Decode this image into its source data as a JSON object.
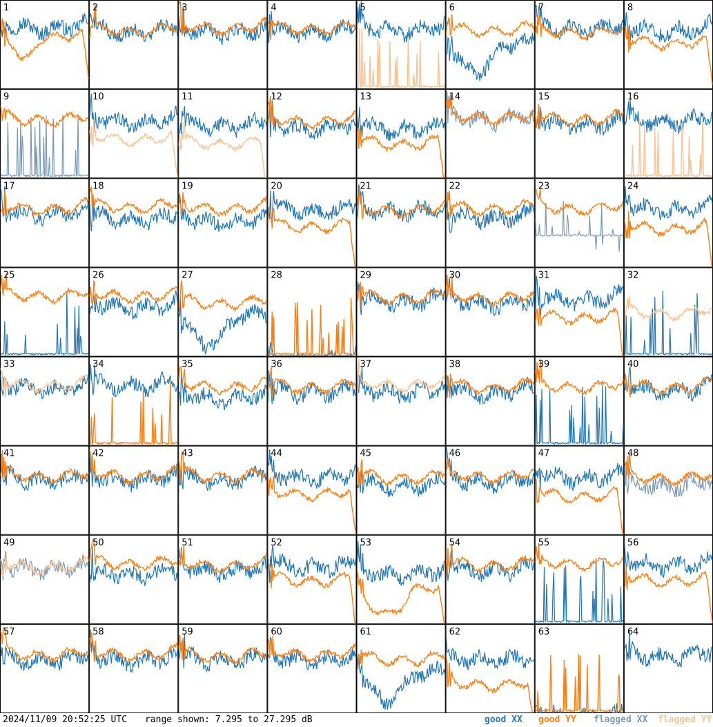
{
  "footer": {
    "timestamp": "2024/11/09 20:52:25 UTC",
    "range_text": "range shown: 7.295 to 27.295 dB",
    "legend": [
      {
        "label": "good XX",
        "color": "#1f77b4"
      },
      {
        "label": "good YY",
        "color": "#ff7f0e"
      },
      {
        "label": "flagged XX",
        "color": "#7a99b3"
      },
      {
        "label": "flagged YY",
        "color": "#f9c493"
      }
    ]
  },
  "chart_data": {
    "type": "line",
    "layout": "8x8 small multiples",
    "ylim": [
      7.295,
      27.295
    ],
    "yunits": "dB",
    "colors": {
      "good_xx": "#1f77b4",
      "good_yy": "#ff7f0e",
      "flagged_xx": "#7a99b3",
      "flagged_yy": "#f9c493"
    },
    "panels": [
      {
        "id": "1",
        "xx": "good",
        "yy": "good",
        "xx_level": 0.75,
        "yy_level": 0.65,
        "yy_shape": "hump",
        "yy_edge": "drop"
      },
      {
        "id": "2",
        "xx": "good",
        "yy": "good",
        "xx_level": 0.7,
        "yy_level": 0.72
      },
      {
        "id": "3",
        "xx": "good",
        "yy": "good",
        "xx_level": 0.7,
        "yy_level": 0.75
      },
      {
        "id": "4",
        "xx": "good",
        "yy": "good",
        "xx_level": 0.7,
        "yy_level": 0.74
      },
      {
        "id": "5",
        "xx": "good",
        "yy": "flagged",
        "xx_level": 0.73,
        "yy_level": 0.02,
        "yy_shape": "spiky"
      },
      {
        "id": "6",
        "xx": "good",
        "yy": "good",
        "xx_level": 0.55,
        "yy_level": 0.72,
        "xx_shape": "dip"
      },
      {
        "id": "7",
        "xx": "good",
        "yy": "good",
        "xx_level": 0.74,
        "yy_level": 0.7
      },
      {
        "id": "8",
        "xx": "good",
        "yy": "good",
        "xx_level": 0.72,
        "yy_level": 0.58,
        "yy_edge": "drop"
      },
      {
        "id": "9",
        "xx": "flagged",
        "yy": "good",
        "xx_level": 0.02,
        "yy_level": 0.72,
        "xx_shape": "spiky"
      },
      {
        "id": "10",
        "xx": "good",
        "yy": "flagged",
        "xx_level": 0.7,
        "yy_level": 0.5,
        "yy_edge": "drop"
      },
      {
        "id": "11",
        "xx": "good",
        "yy": "flagged",
        "xx_level": 0.65,
        "yy_level": 0.45,
        "yy_edge": "drop"
      },
      {
        "id": "12",
        "xx": "good",
        "yy": "good",
        "xx_level": 0.62,
        "yy_level": 0.7
      },
      {
        "id": "13",
        "xx": "good",
        "yy": "good",
        "xx_level": 0.62,
        "yy_level": 0.45,
        "yy_edge": "drop"
      },
      {
        "id": "14",
        "xx": "flagged",
        "yy": "good",
        "xx_level": 0.72,
        "yy_level": 0.74
      },
      {
        "id": "15",
        "xx": "good",
        "yy": "good",
        "xx_level": 0.66,
        "yy_level": 0.72
      },
      {
        "id": "16",
        "xx": "good",
        "yy": "flagged",
        "xx_level": 0.7,
        "yy_level": 0.02,
        "yy_shape": "spiky"
      },
      {
        "id": "17",
        "xx": "good",
        "yy": "good",
        "xx_level": 0.66,
        "yy_level": 0.72
      },
      {
        "id": "18",
        "xx": "good",
        "yy": "good",
        "xx_level": 0.6,
        "yy_level": 0.74
      },
      {
        "id": "19",
        "xx": "good",
        "yy": "good",
        "xx_level": 0.58,
        "yy_level": 0.72
      },
      {
        "id": "20",
        "xx": "good",
        "yy": "good",
        "xx_level": 0.7,
        "yy_level": 0.52,
        "yy_edge": "drop"
      },
      {
        "id": "21",
        "xx": "good",
        "yy": "good",
        "xx_level": 0.7,
        "yy_level": 0.7
      },
      {
        "id": "22",
        "xx": "good",
        "yy": "good",
        "xx_level": 0.62,
        "yy_level": 0.72
      },
      {
        "id": "23",
        "xx": "flagged",
        "yy": "good",
        "xx_level": 0.35,
        "yy_level": 0.72,
        "xx_shape": "spiky"
      },
      {
        "id": "24",
        "xx": "good",
        "yy": "good",
        "xx_level": 0.72,
        "yy_level": 0.5,
        "yy_edge": "drop"
      },
      {
        "id": "25",
        "xx": "good",
        "yy": "good",
        "xx_level": 0.02,
        "yy_level": 0.74,
        "xx_shape": "spiky"
      },
      {
        "id": "26",
        "xx": "good",
        "yy": "good",
        "xx_level": 0.62,
        "yy_level": 0.74
      },
      {
        "id": "27",
        "xx": "good",
        "yy": "good",
        "xx_level": 0.5,
        "yy_level": 0.66,
        "xx_shape": "dip"
      },
      {
        "id": "28",
        "xx": "good",
        "yy": "good",
        "xx_level": 0.02,
        "yy_level": 0.02,
        "yy_shape": "spiky"
      },
      {
        "id": "29",
        "xx": "good",
        "yy": "good",
        "xx_level": 0.68,
        "yy_level": 0.72
      },
      {
        "id": "30",
        "xx": "good",
        "yy": "good",
        "xx_level": 0.66,
        "yy_level": 0.72
      },
      {
        "id": "31",
        "xx": "good",
        "yy": "good",
        "xx_level": 0.7,
        "yy_level": 0.5,
        "yy_edge": "drop"
      },
      {
        "id": "32",
        "xx": "good",
        "yy": "flagged",
        "xx_level": 0.02,
        "yy_level": 0.55,
        "xx_shape": "spiky"
      },
      {
        "id": "33",
        "xx": "good",
        "yy": "flagged",
        "xx_level": 0.7,
        "yy_level": 0.74
      },
      {
        "id": "34",
        "xx": "good",
        "yy": "good",
        "xx_level": 0.74,
        "yy_level": 0.02,
        "yy_shape": "spiky"
      },
      {
        "id": "35",
        "xx": "good",
        "yy": "good",
        "xx_level": 0.6,
        "yy_level": 0.72
      },
      {
        "id": "36",
        "xx": "good",
        "yy": "good",
        "xx_level": 0.66,
        "yy_level": 0.72
      },
      {
        "id": "37",
        "xx": "good",
        "yy": "flagged",
        "xx_level": 0.66,
        "yy_level": 0.74
      },
      {
        "id": "38",
        "xx": "good",
        "yy": "good",
        "xx_level": 0.66,
        "yy_level": 0.72
      },
      {
        "id": "39",
        "xx": "good",
        "yy": "good",
        "xx_level": 0.02,
        "yy_level": 0.72,
        "xx_shape": "spiky"
      },
      {
        "id": "40",
        "xx": "good",
        "yy": "good",
        "xx_level": 0.68,
        "yy_level": 0.72
      },
      {
        "id": "41",
        "xx": "good",
        "yy": "good",
        "xx_level": 0.68,
        "yy_level": 0.72
      },
      {
        "id": "42",
        "xx": "good",
        "yy": "good",
        "xx_level": 0.68,
        "yy_level": 0.72
      },
      {
        "id": "43",
        "xx": "good",
        "yy": "good",
        "xx_level": 0.68,
        "yy_level": 0.72
      },
      {
        "id": "44",
        "xx": "good",
        "yy": "good",
        "xx_level": 0.7,
        "yy_level": 0.52,
        "yy_edge": "drop"
      },
      {
        "id": "45",
        "xx": "good",
        "yy": "good",
        "xx_level": 0.62,
        "yy_level": 0.7
      },
      {
        "id": "46",
        "xx": "good",
        "yy": "good",
        "xx_level": 0.66,
        "yy_level": 0.72
      },
      {
        "id": "47",
        "xx": "good",
        "yy": "good",
        "xx_level": 0.7,
        "yy_level": 0.5,
        "yy_edge": "drop"
      },
      {
        "id": "48",
        "xx": "flagged",
        "yy": "good",
        "xx_level": 0.62,
        "yy_level": 0.7
      },
      {
        "id": "49",
        "xx": "flagged",
        "yy": "flagged",
        "xx_level": 0.68,
        "yy_level": 0.7
      },
      {
        "id": "50",
        "xx": "good",
        "yy": "good",
        "xx_level": 0.62,
        "yy_level": 0.74
      },
      {
        "id": "51",
        "xx": "good",
        "yy": "good",
        "xx_level": 0.66,
        "yy_level": 0.72
      },
      {
        "id": "52",
        "xx": "good",
        "yy": "good",
        "xx_level": 0.7,
        "yy_level": 0.55,
        "yy_edge": "drop"
      },
      {
        "id": "53",
        "xx": "good",
        "yy": "good",
        "xx_level": 0.62,
        "yy_level": 0.45,
        "yy_shape": "dip",
        "yy_edge": "drop"
      },
      {
        "id": "54",
        "xx": "good",
        "yy": "good",
        "xx_level": 0.66,
        "yy_level": 0.72
      },
      {
        "id": "55",
        "xx": "good",
        "yy": "good",
        "xx_level": 0.02,
        "yy_level": 0.74,
        "xx_shape": "spiky"
      },
      {
        "id": "56",
        "xx": "good",
        "yy": "good",
        "xx_level": 0.72,
        "yy_level": 0.55,
        "yy_edge": "drop"
      },
      {
        "id": "57",
        "xx": "good",
        "yy": "good",
        "xx_level": 0.66,
        "yy_level": 0.72
      },
      {
        "id": "58",
        "xx": "good",
        "yy": "good",
        "xx_level": 0.66,
        "yy_level": 0.72
      },
      {
        "id": "59",
        "xx": "good",
        "yy": "good",
        "xx_level": 0.66,
        "yy_level": 0.7
      },
      {
        "id": "60",
        "xx": "good",
        "yy": "good",
        "xx_level": 0.66,
        "yy_level": 0.72
      },
      {
        "id": "61",
        "xx": "good",
        "yy": "good",
        "xx_level": 0.5,
        "yy_level": 0.66,
        "xx_shape": "dip"
      },
      {
        "id": "62",
        "xx": "good",
        "yy": "good",
        "xx_level": 0.66,
        "yy_level": 0.38,
        "yy_edge": "drop"
      },
      {
        "id": "63",
        "xx": "good",
        "yy": "good",
        "xx_level": 0.02,
        "yy_level": 0.02,
        "yy_shape": "spiky"
      },
      {
        "id": "64",
        "xx": "good",
        "yy": "good",
        "xx_level": 0.7,
        "yy_level": 0.02,
        "yy_shape": "none"
      }
    ]
  }
}
